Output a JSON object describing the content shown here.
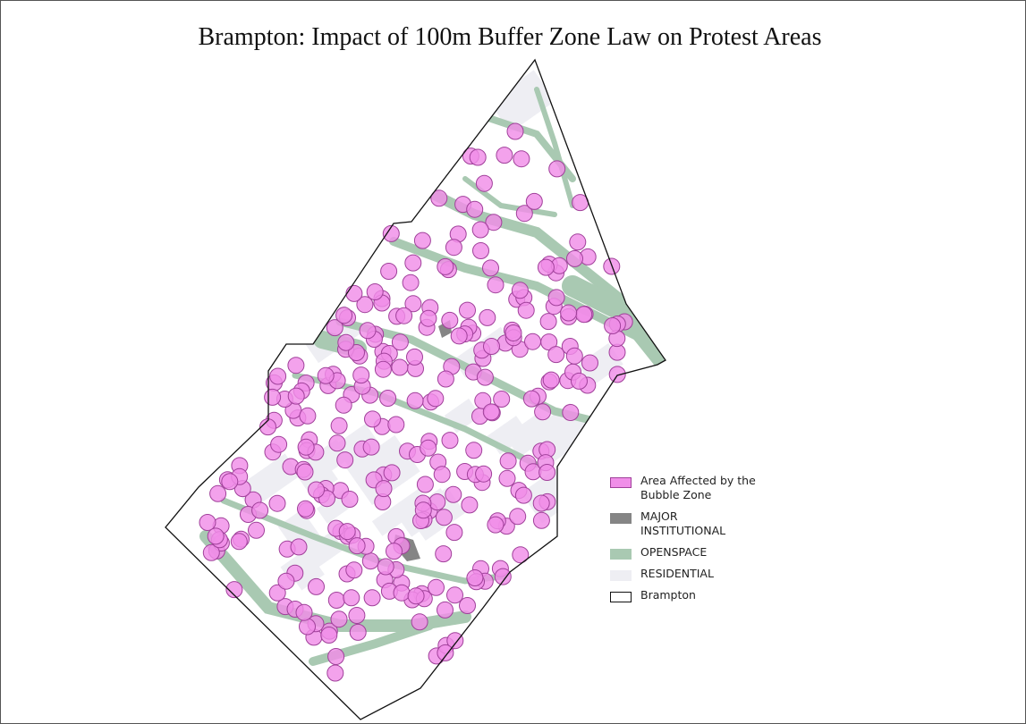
{
  "title": "Brampton: Impact of 100m Buffer Zone Law on Protest Areas",
  "legend": {
    "items": [
      {
        "label": "Area Affected by the Bubble Zone"
      },
      {
        "label": "MAJOR INSTITUTIONAL"
      },
      {
        "label": "OPENSPACE"
      },
      {
        "label": "RESIDENTIAL"
      },
      {
        "label": "Brampton"
      }
    ]
  }
}
